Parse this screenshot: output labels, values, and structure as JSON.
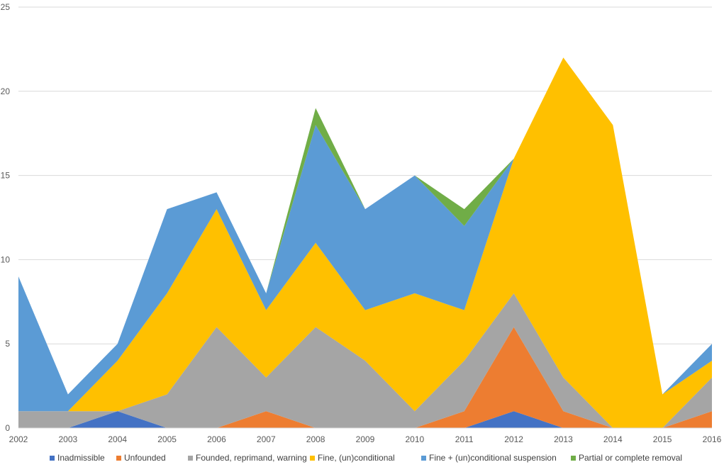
{
  "chart_data": {
    "type": "area",
    "stacked": true,
    "x": [
      "2002",
      "2003",
      "2004",
      "2005",
      "2006",
      "2007",
      "2008",
      "2009",
      "2010",
      "2011",
      "2012",
      "2013",
      "2014",
      "2015",
      "2016"
    ],
    "series": [
      {
        "name": "Inadmissible",
        "color": "#4472C4",
        "values": [
          0,
          0,
          1,
          0,
          0,
          0,
          0,
          0,
          0,
          0,
          1,
          0,
          0,
          0,
          0
        ]
      },
      {
        "name": "Unfounded",
        "color": "#ED7D31",
        "values": [
          0,
          0,
          0,
          0,
          0,
          1,
          0,
          0,
          0,
          1,
          5,
          1,
          0,
          0,
          1
        ]
      },
      {
        "name": "Founded, reprimand, warning",
        "color": "#A5A5A5",
        "values": [
          1,
          1,
          0,
          2,
          6,
          2,
          6,
          4,
          1,
          3,
          2,
          2,
          0,
          0,
          2
        ]
      },
      {
        "name": "Fine, (un)conditional",
        "color": "#FFC000",
        "values": [
          0,
          0,
          3,
          6,
          7,
          4,
          5,
          3,
          7,
          3,
          8,
          19,
          18,
          2,
          1
        ]
      },
      {
        "name": "Fine + (un)conditional suspension",
        "color": "#5B9BD5",
        "values": [
          8,
          1,
          1,
          5,
          1,
          1,
          7,
          6,
          7,
          5,
          0,
          0,
          0,
          0,
          1
        ]
      },
      {
        "name": "Partial or complete removal",
        "color": "#70AD47",
        "values": [
          0,
          0,
          0,
          0,
          0,
          0,
          1,
          0,
          0,
          1,
          0,
          0,
          0,
          0,
          0
        ]
      }
    ],
    "ylim": [
      0,
      25
    ],
    "yticks": [
      "0",
      "5",
      "10",
      "15",
      "20",
      "25"
    ],
    "grid": true,
    "legend": "bottom"
  }
}
